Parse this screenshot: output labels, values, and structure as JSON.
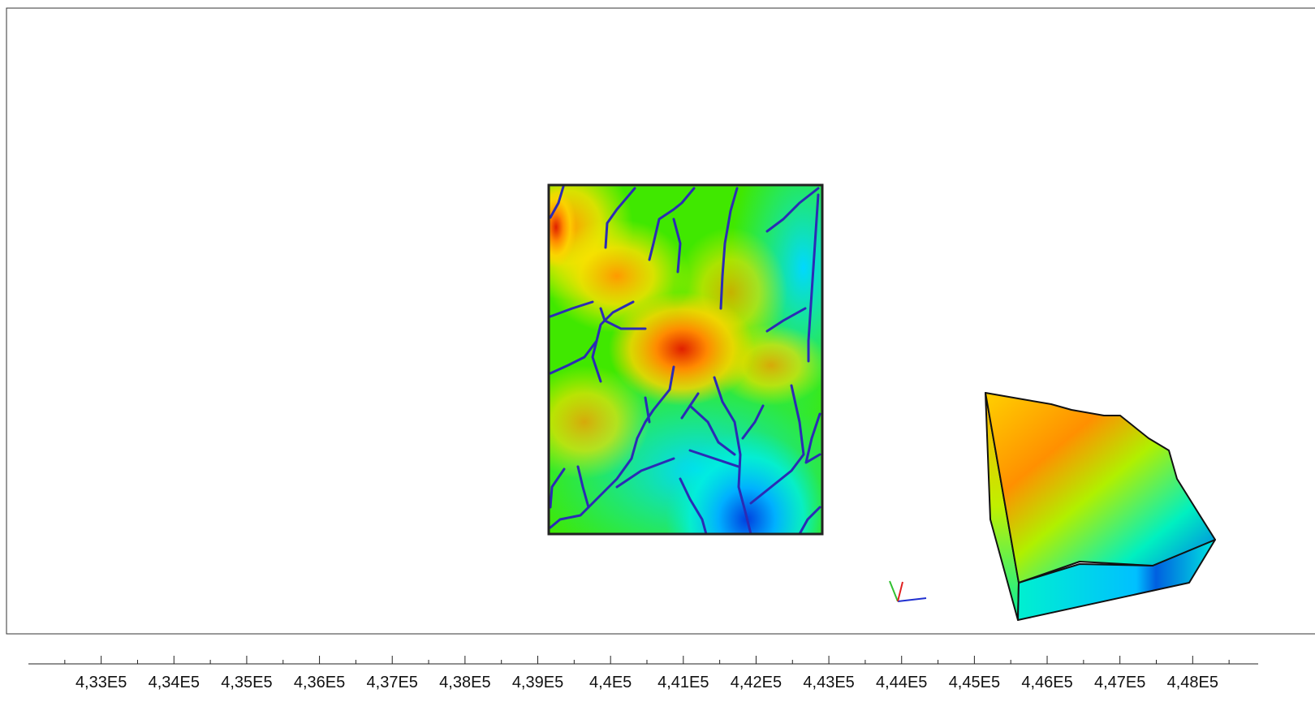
{
  "x_axis": {
    "xlim": [
      432000,
      448900
    ],
    "ticks": [
      {
        "value": 433000,
        "label": "4,33E5"
      },
      {
        "value": 434000,
        "label": "4,34E5"
      },
      {
        "value": 435000,
        "label": "4,35E5"
      },
      {
        "value": 436000,
        "label": "4,36E5"
      },
      {
        "value": 437000,
        "label": "4,37E5"
      },
      {
        "value": 438000,
        "label": "4,38E5"
      },
      {
        "value": 439000,
        "label": "4,39E5"
      },
      {
        "value": 440000,
        "label": "4,4E5"
      },
      {
        "value": 441000,
        "label": "4,41E5"
      },
      {
        "value": 442000,
        "label": "4,42E5"
      },
      {
        "value": 443000,
        "label": "4,43E5"
      },
      {
        "value": 444000,
        "label": "4,44E5"
      },
      {
        "value": 445000,
        "label": "4,45E5"
      },
      {
        "value": 446000,
        "label": "4,46E5"
      },
      {
        "value": 447000,
        "label": "4,47E5"
      },
      {
        "value": 448000,
        "label": "4,48E5"
      }
    ]
  }
}
